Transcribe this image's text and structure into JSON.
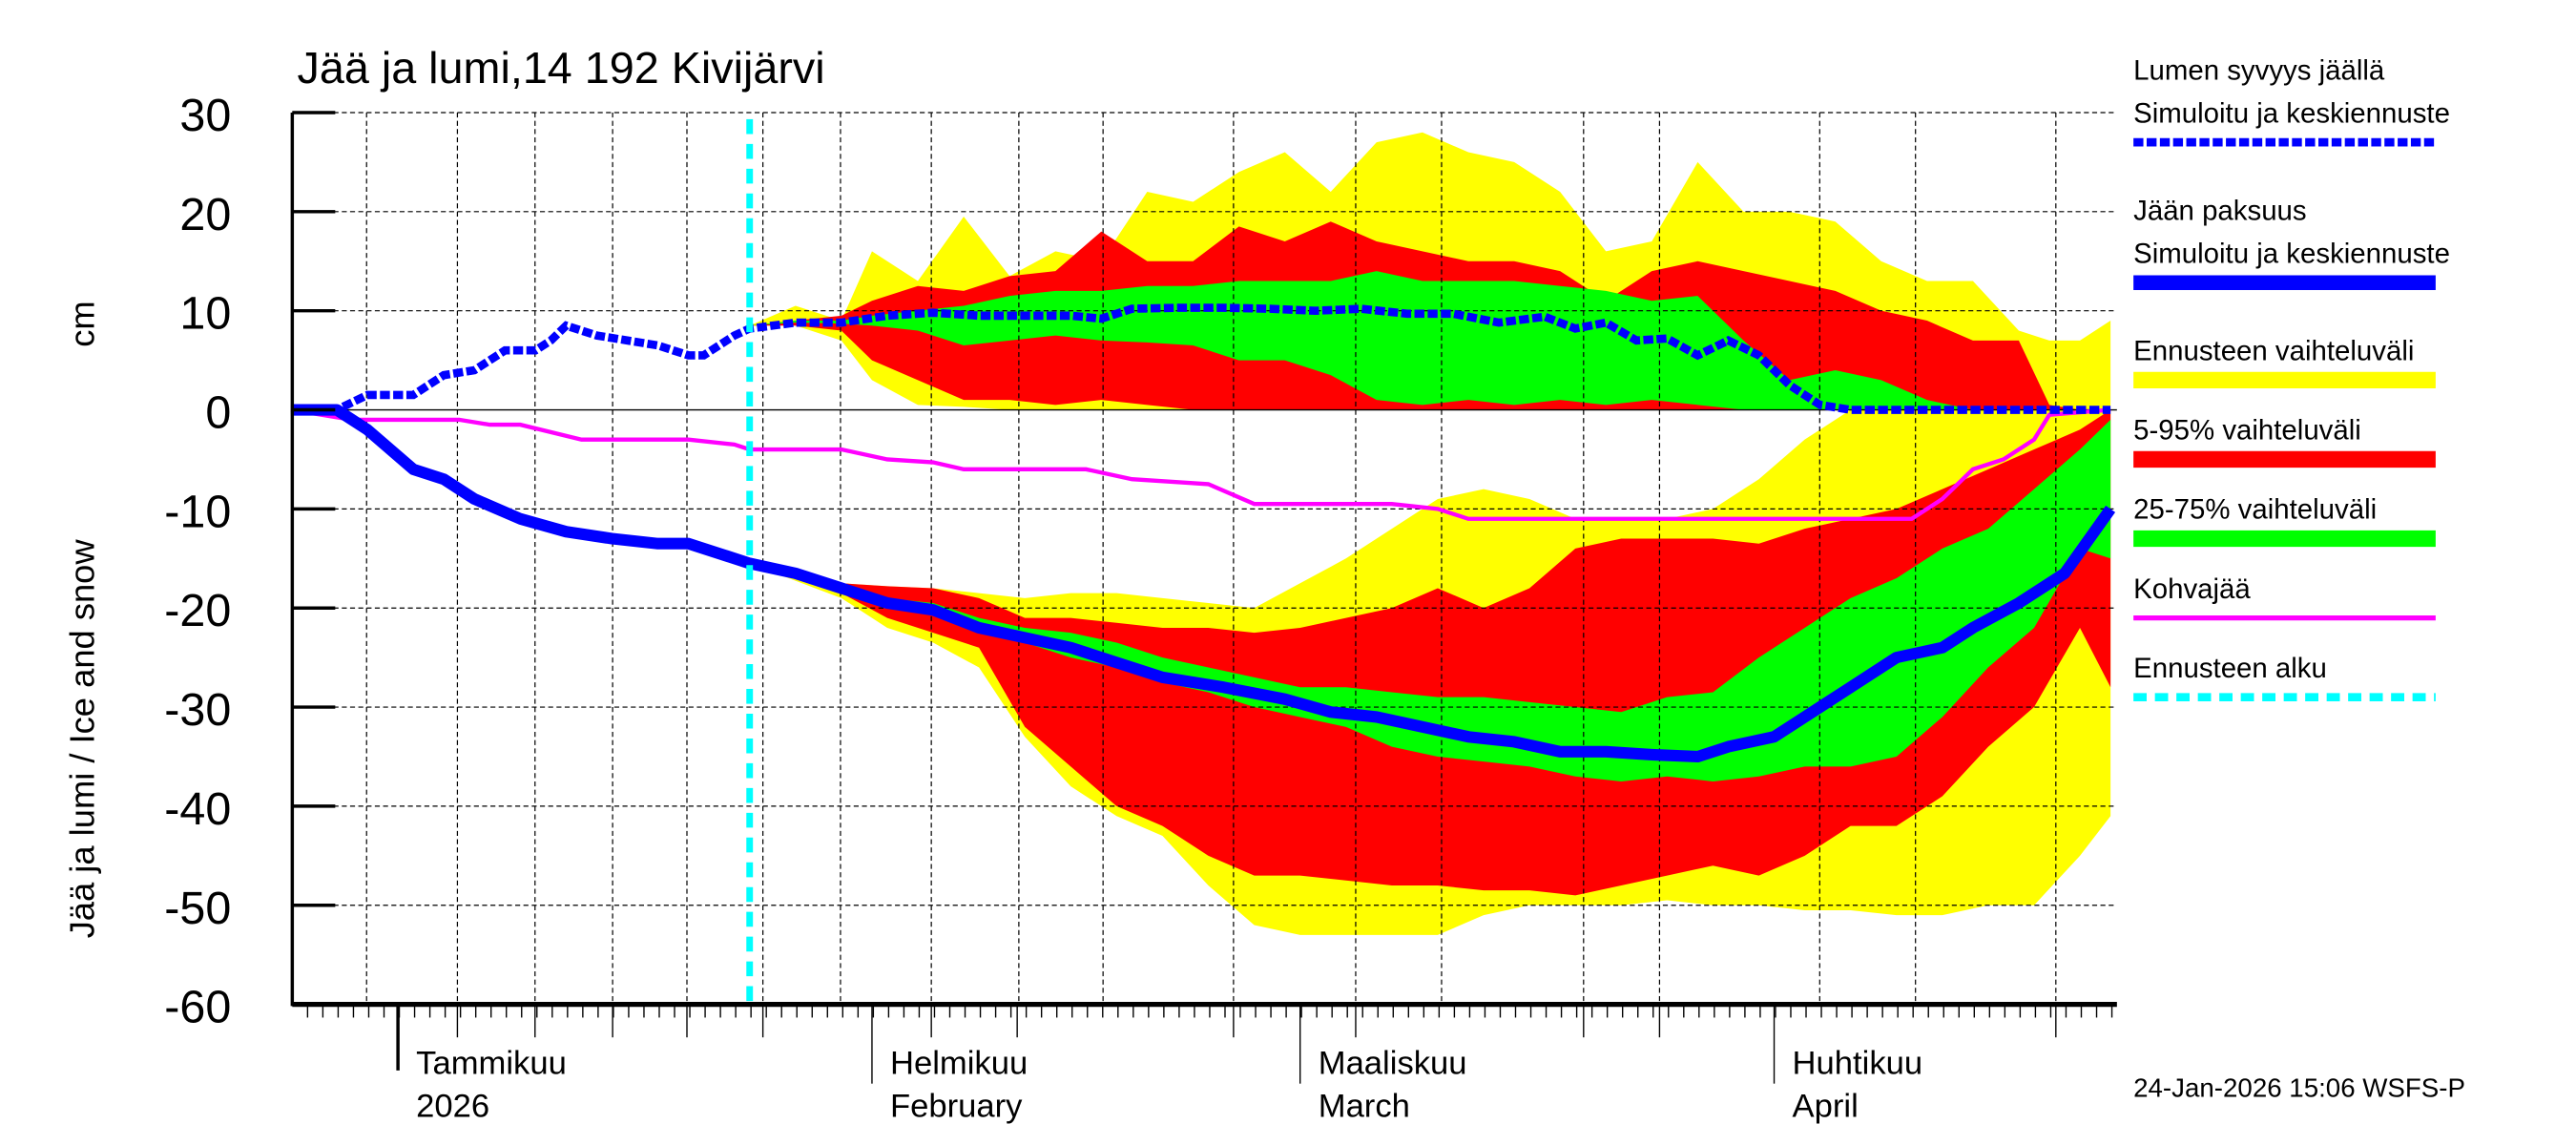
{
  "chart_data": {
    "type": "area",
    "title": "Jää ja lumi,14 192 Kivijärvi",
    "ylabel": "Jää ja lumi / Ice and snow",
    "yunit": "cm",
    "ylim": [
      -60,
      30
    ],
    "yticks": [
      "30",
      "20",
      "10",
      "0",
      "-10",
      "-20",
      "-30",
      "-40",
      "-50",
      "-60"
    ],
    "xlim": [
      "2025-12-25",
      "2026-04-23"
    ],
    "month_labels": [
      {
        "date": "2026-01-01",
        "fi": "Tammikuu",
        "en": "2026"
      },
      {
        "date": "2026-02-01",
        "fi": "Helmikuu",
        "en": "February"
      },
      {
        "date": "2026-03-01",
        "fi": "Maaliskuu",
        "en": "March"
      },
      {
        "date": "2026-04-01",
        "fi": "Huhtikuu",
        "en": "April"
      }
    ],
    "grid": true,
    "legend_position": "right",
    "forecast_start": "2026-01-24",
    "colors": {
      "snow": "#0000ff",
      "ice": "#0000ff",
      "range": "#ffff00",
      "p5_95": "#ff0000",
      "p25_75": "#00ff00",
      "kohva": "#ff00ff",
      "forecast_start": "#00ffff"
    },
    "legend": [
      {
        "key": "snow",
        "line1": "Lumen syvyys jäällä",
        "line2": "Simuloitu ja keskiennuste"
      },
      {
        "key": "ice",
        "line1": "Jään paksuus",
        "line2": "Simuloitu ja keskiennuste"
      },
      {
        "key": "range",
        "line1": "Ennusteen vaihteluväli"
      },
      {
        "key": "p5_95",
        "line1": "5-95% vaihteluväli"
      },
      {
        "key": "p25_75",
        "line1": "25-75% vaihteluväli"
      },
      {
        "key": "kohva",
        "line1": "Kohvajää"
      },
      {
        "key": "forecast_start",
        "line1": "Ennusteen alku"
      }
    ],
    "snow_depth": [
      [
        "2025-12-25",
        0
      ],
      [
        "2025-12-28",
        0
      ],
      [
        "2025-12-30",
        1.5
      ],
      [
        "2026-01-02",
        1.5
      ],
      [
        "2026-01-04",
        3.5
      ],
      [
        "2026-01-06",
        4
      ],
      [
        "2026-01-08",
        6
      ],
      [
        "2026-01-10",
        6
      ],
      [
        "2026-01-11",
        7
      ],
      [
        "2026-01-12",
        8.5
      ],
      [
        "2026-01-14",
        7.5
      ],
      [
        "2026-01-16",
        7
      ],
      [
        "2026-01-18",
        6.5
      ],
      [
        "2026-01-20",
        5.5
      ],
      [
        "2026-01-21",
        5.5
      ],
      [
        "2026-01-23",
        7.5
      ],
      [
        "2026-01-24",
        8.2
      ],
      [
        "2026-01-27",
        8.8
      ],
      [
        "2026-01-30",
        8.8
      ],
      [
        "2026-02-02",
        9.5
      ],
      [
        "2026-02-05",
        9.8
      ],
      [
        "2026-02-08",
        9.5
      ],
      [
        "2026-02-11",
        9.5
      ],
      [
        "2026-02-14",
        9.5
      ],
      [
        "2026-02-16",
        9.2
      ],
      [
        "2026-02-18",
        10.2
      ],
      [
        "2026-02-21",
        10.3
      ],
      [
        "2026-02-24",
        10.3
      ],
      [
        "2026-02-27",
        10.2
      ],
      [
        "2026-03-02",
        10
      ],
      [
        "2026-03-05",
        10.2
      ],
      [
        "2026-03-08",
        9.7
      ],
      [
        "2026-03-11",
        9.7
      ],
      [
        "2026-03-14",
        8.8
      ],
      [
        "2026-03-17",
        9.4
      ],
      [
        "2026-03-19",
        8.2
      ],
      [
        "2026-03-21",
        8.8
      ],
      [
        "2026-03-23",
        7
      ],
      [
        "2026-03-25",
        7.2
      ],
      [
        "2026-03-27",
        5.5
      ],
      [
        "2026-03-29",
        7
      ],
      [
        "2026-03-31",
        5.5
      ],
      [
        "2026-04-02",
        2.5
      ],
      [
        "2026-04-04",
        0.5
      ],
      [
        "2026-04-06",
        0
      ],
      [
        "2026-04-23",
        0
      ]
    ],
    "ice_thickness": [
      [
        "2025-12-25",
        0
      ],
      [
        "2025-12-28",
        0
      ],
      [
        "2025-12-30",
        -2
      ],
      [
        "2026-01-02",
        -6
      ],
      [
        "2026-01-04",
        -7
      ],
      [
        "2026-01-06",
        -9
      ],
      [
        "2026-01-09",
        -11
      ],
      [
        "2026-01-12",
        -12.3
      ],
      [
        "2026-01-15",
        -13
      ],
      [
        "2026-01-18",
        -13.5
      ],
      [
        "2026-01-20",
        -13.5
      ],
      [
        "2026-01-22",
        -14.5
      ],
      [
        "2026-01-24",
        -15.5
      ],
      [
        "2026-01-27",
        -16.5
      ],
      [
        "2026-01-30",
        -18
      ],
      [
        "2026-02-02",
        -19.5
      ],
      [
        "2026-02-05",
        -20.2
      ],
      [
        "2026-02-08",
        -22
      ],
      [
        "2026-02-11",
        -23
      ],
      [
        "2026-02-14",
        -24
      ],
      [
        "2026-02-17",
        -25.5
      ],
      [
        "2026-02-20",
        -27
      ],
      [
        "2026-02-24",
        -28
      ],
      [
        "2026-02-28",
        -29.2
      ],
      [
        "2026-03-03",
        -30.5
      ],
      [
        "2026-03-06",
        -31
      ],
      [
        "2026-03-09",
        -32
      ],
      [
        "2026-03-12",
        -33
      ],
      [
        "2026-03-15",
        -33.5
      ],
      [
        "2026-03-18",
        -34.5
      ],
      [
        "2026-03-21",
        -34.5
      ],
      [
        "2026-03-24",
        -34.8
      ],
      [
        "2026-03-27",
        -35
      ],
      [
        "2026-03-29",
        -34
      ],
      [
        "2026-04-01",
        -33
      ],
      [
        "2026-04-03",
        -31
      ],
      [
        "2026-04-06",
        -28
      ],
      [
        "2026-04-09",
        -25
      ],
      [
        "2026-04-12",
        -24
      ],
      [
        "2026-04-14",
        -22
      ],
      [
        "2026-04-17",
        -19.5
      ],
      [
        "2026-04-20",
        -16.5
      ],
      [
        "2026-04-23",
        -10
      ]
    ],
    "kohvajaa": [
      [
        "2025-12-25",
        0
      ],
      [
        "2025-12-29",
        -1
      ],
      [
        "2026-01-05",
        -1
      ],
      [
        "2026-01-07",
        -1.5
      ],
      [
        "2026-01-09",
        -1.5
      ],
      [
        "2026-01-13",
        -3
      ],
      [
        "2026-01-20",
        -3
      ],
      [
        "2026-01-23",
        -3.5
      ],
      [
        "2026-01-24",
        -4
      ],
      [
        "2026-01-30",
        -4
      ],
      [
        "2026-02-02",
        -5
      ],
      [
        "2026-02-05",
        -5.3
      ],
      [
        "2026-02-07",
        -6
      ],
      [
        "2026-02-15",
        -6
      ],
      [
        "2026-02-18",
        -7
      ],
      [
        "2026-02-23",
        -7.5
      ],
      [
        "2026-02-26",
        -9.5
      ],
      [
        "2026-03-07",
        -9.5
      ],
      [
        "2026-03-10",
        -10
      ],
      [
        "2026-03-12",
        -11
      ],
      [
        "2026-04-10",
        -11
      ],
      [
        "2026-04-12",
        -9
      ],
      [
        "2026-04-14",
        -6
      ],
      [
        "2026-04-16",
        -5
      ],
      [
        "2026-04-18",
        -3
      ],
      [
        "2026-04-19",
        -0.5
      ],
      [
        "2026-04-23",
        0
      ]
    ],
    "snow_bands_columns": [
      "date",
      "max",
      "p95",
      "p75",
      "p25",
      "p5",
      "min"
    ],
    "snow_bands": [
      [
        "2026-01-24",
        8.5,
        8.5,
        8.5,
        8.5,
        8.5,
        8.5
      ],
      [
        "2026-01-27",
        10.5,
        9,
        9,
        8.8,
        8.5,
        8.5
      ],
      [
        "2026-01-30",
        9,
        9.5,
        9,
        8.7,
        8,
        7
      ],
      [
        "2026-02-01",
        16,
        11,
        9.5,
        8.5,
        5,
        3
      ],
      [
        "2026-02-04",
        13,
        12.5,
        10,
        8,
        3,
        0.5
      ],
      [
        "2026-02-07",
        19.5,
        12,
        10.5,
        6.5,
        1,
        0.3
      ],
      [
        "2026-02-10",
        13.5,
        13.5,
        11.5,
        7,
        1,
        0
      ],
      [
        "2026-02-13",
        16,
        14,
        12,
        7.5,
        0.5,
        0
      ],
      [
        "2026-02-16",
        15,
        18,
        12,
        7,
        1,
        0
      ],
      [
        "2026-02-19",
        22,
        15,
        12.5,
        6.8,
        0.5,
        0
      ],
      [
        "2026-02-22",
        21,
        15,
        12.5,
        6.5,
        0,
        0
      ],
      [
        "2026-02-25",
        24,
        18.5,
        13,
        5,
        0,
        0
      ],
      [
        "2026-02-28",
        26,
        17,
        13,
        5,
        0,
        0
      ],
      [
        "2026-03-03",
        22,
        19,
        13,
        3.5,
        0,
        0
      ],
      [
        "2026-03-06",
        27,
        17,
        14,
        1,
        0,
        0
      ],
      [
        "2026-03-09",
        28,
        16,
        13,
        0.5,
        0,
        0
      ],
      [
        "2026-03-12",
        26,
        15,
        13,
        1,
        0,
        0
      ],
      [
        "2026-03-15",
        25,
        15,
        13,
        0.5,
        0,
        0
      ],
      [
        "2026-03-18",
        22,
        14,
        12.5,
        1,
        0,
        0
      ],
      [
        "2026-03-21",
        16,
        11,
        12,
        0.5,
        0,
        0
      ],
      [
        "2026-03-24",
        17,
        14,
        11,
        1,
        0,
        0
      ],
      [
        "2026-03-27",
        25,
        15,
        11.5,
        0.5,
        0,
        0
      ],
      [
        "2026-03-30",
        20,
        14,
        7,
        0,
        0,
        0
      ],
      [
        "2026-04-02",
        20,
        13,
        3,
        0,
        0,
        0
      ],
      [
        "2026-04-05",
        19,
        12,
        4,
        0,
        0,
        0
      ],
      [
        "2026-04-08",
        15,
        10,
        3,
        0,
        0,
        0
      ],
      [
        "2026-04-11",
        13,
        9,
        1,
        0,
        0,
        0
      ],
      [
        "2026-04-14",
        13,
        7,
        0,
        0,
        0,
        0
      ],
      [
        "2026-04-17",
        8,
        7,
        0,
        0,
        0,
        0
      ],
      [
        "2026-04-19",
        7,
        0.5,
        0,
        0,
        0,
        0
      ],
      [
        "2026-04-21",
        7,
        0,
        0,
        0,
        0,
        0
      ],
      [
        "2026-04-23",
        9,
        0,
        0,
        0,
        0,
        0
      ]
    ],
    "ice_bands_columns": [
      "date",
      "max",
      "p95",
      "p75",
      "p25",
      "p5",
      "min"
    ],
    "ice_bands": [
      [
        "2026-01-24",
        -15.5,
        -15.5,
        -15.5,
        -15.5,
        -15.5,
        -15.5
      ],
      [
        "2026-01-30",
        -17.5,
        -17.5,
        -17.5,
        -18,
        -18.5,
        -19
      ],
      [
        "2026-02-02",
        -17.8,
        -17.8,
        -19,
        -20,
        -21,
        -22
      ],
      [
        "2026-02-05",
        -18,
        -18,
        -19.5,
        -20.5,
        -22.5,
        -23.5
      ],
      [
        "2026-02-08",
        -18.5,
        -19,
        -21,
        -22.5,
        -24,
        -26
      ],
      [
        "2026-02-11",
        -19,
        -21,
        -22,
        -23.5,
        -32,
        -33
      ],
      [
        "2026-02-14",
        -18.5,
        -21,
        -22.5,
        -25,
        -36,
        -38
      ],
      [
        "2026-02-17",
        -18.5,
        -21.5,
        -23.5,
        -26,
        -40,
        -41
      ],
      [
        "2026-02-20",
        -19,
        -22,
        -25,
        -27.5,
        -42,
        -43
      ],
      [
        "2026-02-23",
        -19.5,
        -22,
        -26,
        -28.5,
        -45,
        -48
      ],
      [
        "2026-02-26",
        -20,
        -22.5,
        -27,
        -30,
        -47,
        -52
      ],
      [
        "2026-03-01",
        -17.5,
        -22,
        -28,
        -31,
        -47,
        -53
      ],
      [
        "2026-03-04",
        -15,
        -21,
        -28,
        -32,
        -47.5,
        -53
      ],
      [
        "2026-03-07",
        -12,
        -20,
        -28.5,
        -34,
        -48,
        -53
      ],
      [
        "2026-03-10",
        -9,
        -18,
        -29,
        -35,
        -48,
        -53
      ],
      [
        "2026-03-13",
        -8,
        -20,
        -29,
        -35.5,
        -48.5,
        -51
      ],
      [
        "2026-03-16",
        -9,
        -18,
        -29.5,
        -36,
        -48.5,
        -50
      ],
      [
        "2026-03-19",
        -11,
        -14,
        -30,
        -37,
        -49,
        -50
      ],
      [
        "2026-03-22",
        -11,
        -13,
        -30.5,
        -37.5,
        -48,
        -50
      ],
      [
        "2026-03-25",
        -11,
        -13,
        -29,
        -37,
        -47,
        -49.5
      ],
      [
        "2026-03-28",
        -10,
        -13,
        -28.5,
        -37.5,
        -46,
        -50
      ],
      [
        "2026-03-31",
        -7,
        -13.5,
        -25,
        -37,
        -47,
        -50
      ],
      [
        "2026-04-03",
        -3,
        -12,
        -22,
        -36,
        -45,
        -50.5
      ],
      [
        "2026-04-06",
        0,
        -11,
        -19,
        -36,
        -42,
        -50.5
      ],
      [
        "2026-04-09",
        0,
        -10,
        -17,
        -35,
        -42,
        -51
      ],
      [
        "2026-04-12",
        0,
        -8,
        -14,
        -31,
        -39,
        -51
      ],
      [
        "2026-04-15",
        0,
        -6,
        -12,
        -26,
        -34,
        -50
      ],
      [
        "2026-04-18",
        0,
        -4,
        -8,
        -22,
        -30,
        -50
      ],
      [
        "2026-04-21",
        0,
        -2,
        -4,
        -14,
        -22,
        -45
      ],
      [
        "2026-04-23",
        0,
        0,
        -1,
        -15,
        -28,
        -41
      ]
    ]
  },
  "footer": {
    "timestamp": "24-Jan-2026 15:06 WSFS-P"
  }
}
